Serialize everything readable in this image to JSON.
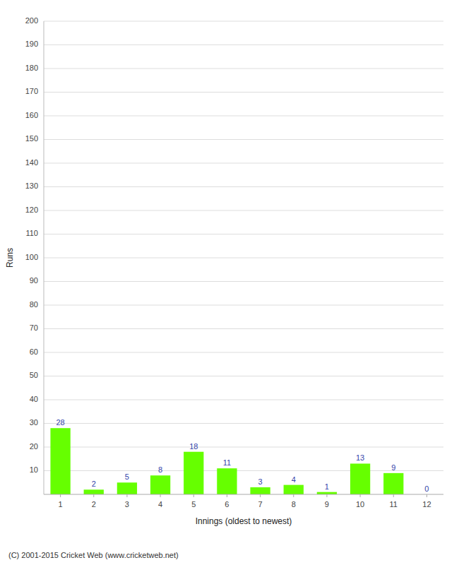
{
  "chart_data": {
    "type": "bar",
    "xlabel": "Innings (oldest to newest)",
    "ylabel": "Runs",
    "categories": [
      "1",
      "2",
      "3",
      "4",
      "5",
      "6",
      "7",
      "8",
      "9",
      "10",
      "11",
      "12"
    ],
    "values": [
      28,
      2,
      5,
      8,
      18,
      11,
      3,
      4,
      1,
      13,
      9,
      0
    ],
    "color": "#66ff00",
    "ylim": [
      0,
      200
    ],
    "yticks": [
      10,
      20,
      30,
      40,
      50,
      60,
      70,
      80,
      90,
      100,
      110,
      120,
      130,
      140,
      150,
      160,
      170,
      180,
      190,
      200
    ],
    "grid": true,
    "data_labels": true,
    "annotations": [
      "(C) 2001-2015 Cricket Web (www.cricketweb.net)"
    ]
  }
}
